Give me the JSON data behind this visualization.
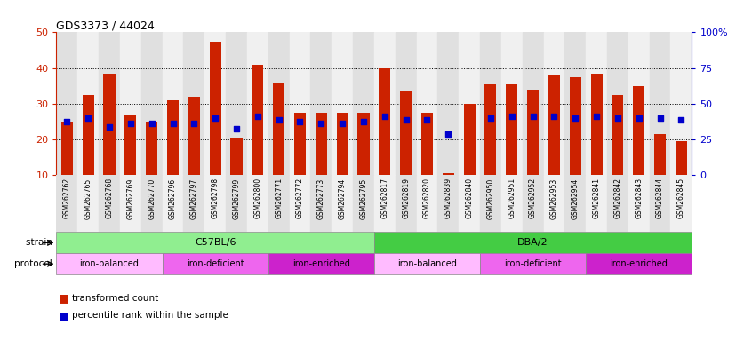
{
  "title": "GDS3373 / 44024",
  "samples": [
    "GSM262762",
    "GSM262765",
    "GSM262768",
    "GSM262769",
    "GSM262770",
    "GSM262796",
    "GSM262797",
    "GSM262798",
    "GSM262799",
    "GSM262800",
    "GSM262771",
    "GSM262772",
    "GSM262773",
    "GSM262794",
    "GSM262795",
    "GSM262817",
    "GSM262819",
    "GSM262820",
    "GSM262839",
    "GSM262840",
    "GSM262950",
    "GSM262951",
    "GSM262952",
    "GSM262953",
    "GSM262954",
    "GSM262841",
    "GSM262842",
    "GSM262843",
    "GSM262844",
    "GSM262845"
  ],
  "red_values": [
    25.0,
    32.5,
    38.5,
    27.0,
    25.0,
    31.0,
    32.0,
    47.5,
    20.5,
    41.0,
    36.0,
    27.5,
    27.5,
    27.5,
    27.5,
    40.0,
    33.5,
    27.5,
    10.5,
    30.0,
    35.5,
    35.5,
    34.0,
    38.0,
    37.5,
    38.5,
    32.5,
    35.0,
    21.5,
    19.5
  ],
  "blue_values": [
    25.0,
    26.0,
    23.5,
    24.5,
    24.5,
    24.5,
    24.5,
    26.0,
    23.0,
    26.5,
    25.5,
    25.0,
    24.5,
    24.5,
    25.0,
    26.5,
    25.5,
    25.5,
    21.5,
    null,
    26.0,
    26.5,
    26.5,
    26.5,
    26.0,
    26.5,
    26.0,
    26.0,
    26.0,
    25.5
  ],
  "strain_groups": [
    {
      "label": "C57BL/6",
      "start": 0,
      "end": 14,
      "color": "#90EE90"
    },
    {
      "label": "DBA/2",
      "start": 15,
      "end": 29,
      "color": "#44CC44"
    }
  ],
  "protocol_groups": [
    {
      "label": "iron-balanced",
      "start": 0,
      "end": 4,
      "color": "#FFBBFF"
    },
    {
      "label": "iron-deficient",
      "start": 5,
      "end": 9,
      "color": "#EE66EE"
    },
    {
      "label": "iron-enriched",
      "start": 10,
      "end": 14,
      "color": "#CC22CC"
    },
    {
      "label": "iron-balanced",
      "start": 15,
      "end": 19,
      "color": "#FFBBFF"
    },
    {
      "label": "iron-deficient",
      "start": 20,
      "end": 24,
      "color": "#EE66EE"
    },
    {
      "label": "iron-enriched",
      "start": 25,
      "end": 29,
      "color": "#CC22CC"
    }
  ],
  "red_color": "#CC2200",
  "blue_color": "#0000CC",
  "ymin": 10,
  "ymax": 50,
  "yticks_left": [
    10,
    20,
    30,
    40,
    50
  ],
  "yticks_right_pct": [
    0,
    25,
    50,
    75,
    100
  ],
  "yticks_right_labels": [
    "0",
    "25",
    "50",
    "75",
    "100%"
  ],
  "bar_width": 0.55,
  "col_bg_even": "#E0E0E0",
  "col_bg_odd": "#F0F0F0"
}
